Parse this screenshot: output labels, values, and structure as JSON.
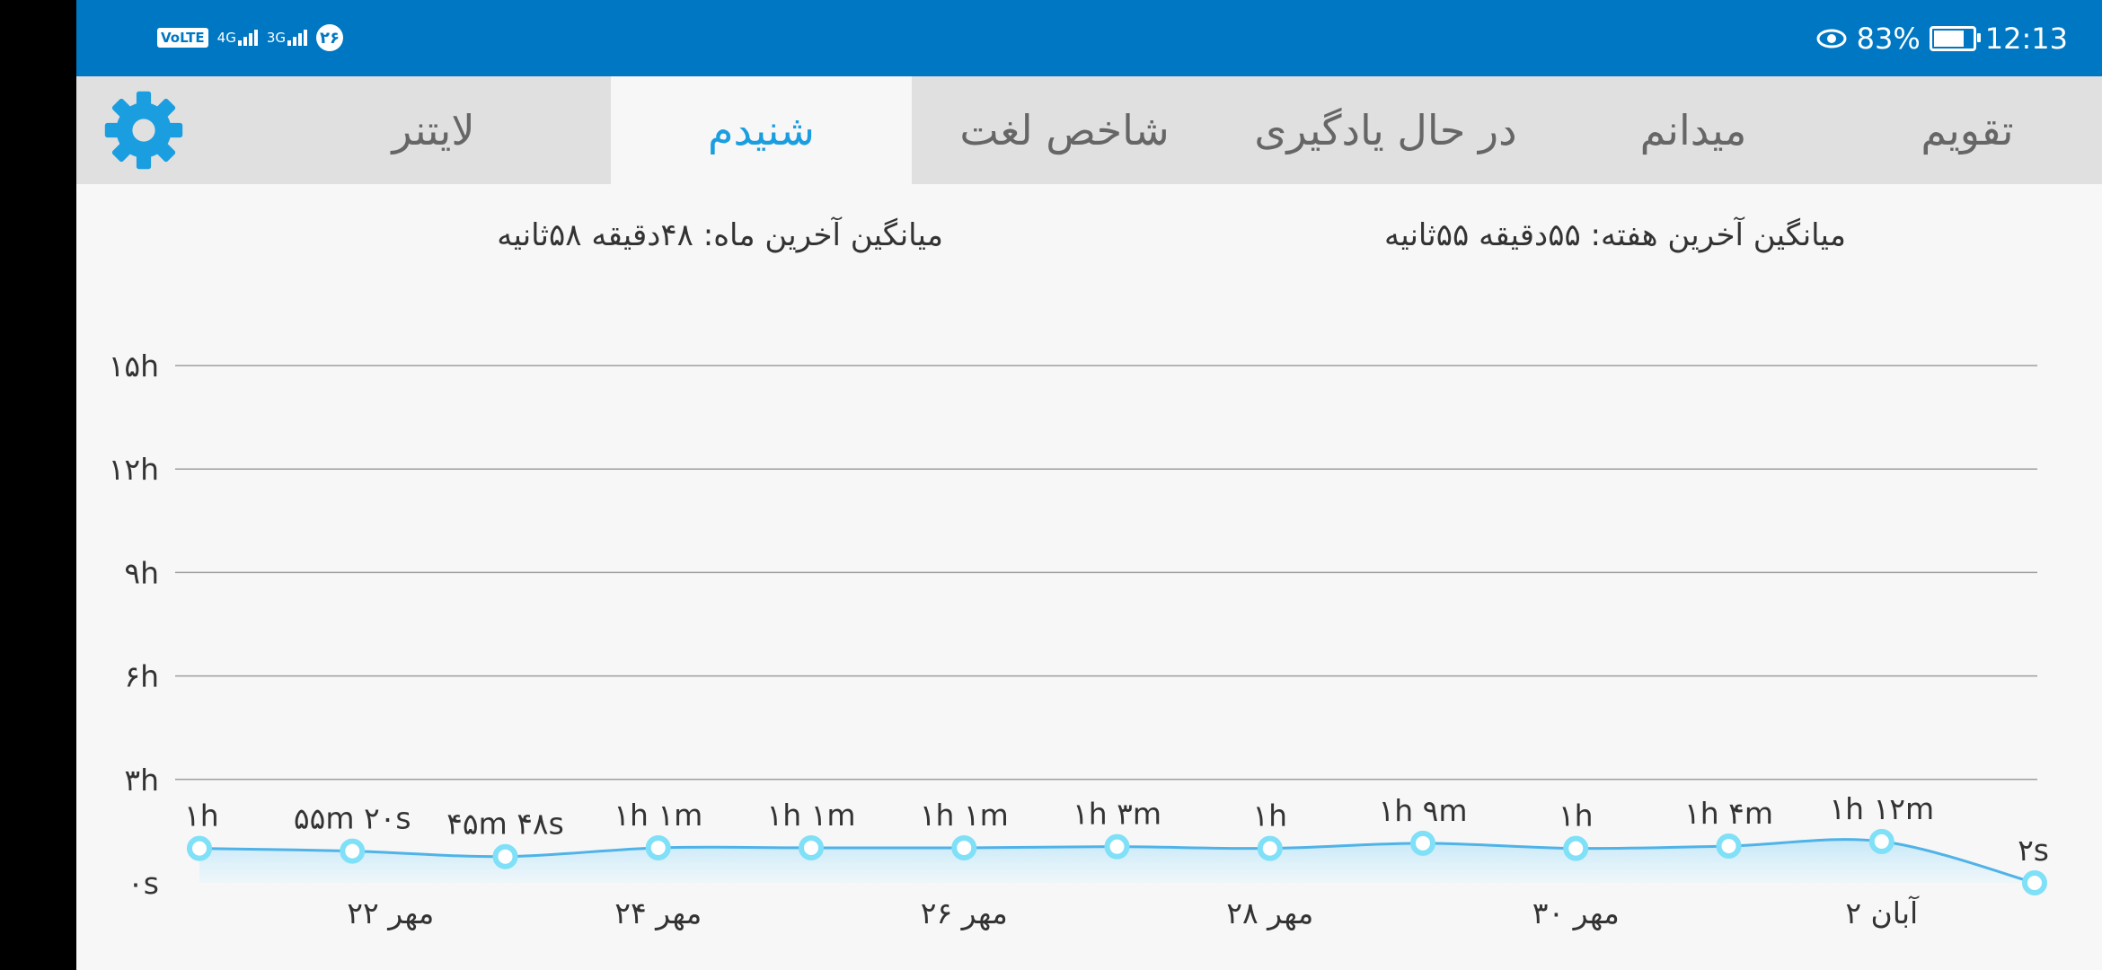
{
  "status_bar": {
    "network_badge": "VoLTE",
    "sim1_label": "4G",
    "sim2_label": "3G",
    "notification": "۲۶",
    "battery": "83%",
    "battery_level": 0.83,
    "time": "12:13"
  },
  "tabs": [
    {
      "label": "تقویم",
      "active": false
    },
    {
      "label": "میدانم",
      "active": false
    },
    {
      "label": "در حال یادگیری",
      "active": false
    },
    {
      "label": "شاخص لغت",
      "active": false
    },
    {
      "label": "شنیدم",
      "active": true
    },
    {
      "label": "لایتنر",
      "active": false
    }
  ],
  "averages": {
    "week": "میانگین آخرین هفته: ۵۵دقیقه  ۵۵ثانیه",
    "month": "میانگین آخرین ماه: ۴۸دقیقه  ۵۸ثانیه"
  },
  "colors": {
    "accent": "#1a9ee0",
    "status_bar": "#0077c2",
    "line": "#4fb3e8",
    "marker": "#7fe0f7"
  },
  "chart_data": {
    "type": "line",
    "title": "",
    "xlabel": "",
    "ylabel": "",
    "ylim_hours": [
      0,
      15
    ],
    "y_ticks": [
      {
        "label": "۰s",
        "hours": 0
      },
      {
        "label": "۳h",
        "hours": 3
      },
      {
        "label": "۶h",
        "hours": 6
      },
      {
        "label": "۹h",
        "hours": 9
      },
      {
        "label": "۱۲h",
        "hours": 12
      },
      {
        "label": "۱۵h",
        "hours": 15
      }
    ],
    "grid": true,
    "x_tick_labels": [
      {
        "label": "۲۲ مهر",
        "index": 1.25
      },
      {
        "label": "۲۴ مهر",
        "index": 3
      },
      {
        "label": "۲۶ مهر",
        "index": 5
      },
      {
        "label": "۲۸ مهر",
        "index": 7
      },
      {
        "label": "۳۰ مهر",
        "index": 9
      },
      {
        "label": "۲ آبان",
        "index": 11
      }
    ],
    "points": [
      {
        "label": "۱h",
        "hours": 1.0
      },
      {
        "label": "۵۵m ۲۰s",
        "hours": 0.922
      },
      {
        "label": "۴۵m ۴۸s",
        "hours": 0.763
      },
      {
        "label": "۱h ۱m",
        "hours": 1.017
      },
      {
        "label": "۱h ۱m",
        "hours": 1.017
      },
      {
        "label": "۱h ۱m",
        "hours": 1.017
      },
      {
        "label": "۱h ۳m",
        "hours": 1.05
      },
      {
        "label": "۱h",
        "hours": 1.0
      },
      {
        "label": "۱h ۹m",
        "hours": 1.15
      },
      {
        "label": "۱h",
        "hours": 1.0
      },
      {
        "label": "۱h ۴m",
        "hours": 1.067
      },
      {
        "label": "۱h ۱۲m",
        "hours": 1.2
      },
      {
        "label": "۲s",
        "hours": 0.0006
      }
    ]
  }
}
